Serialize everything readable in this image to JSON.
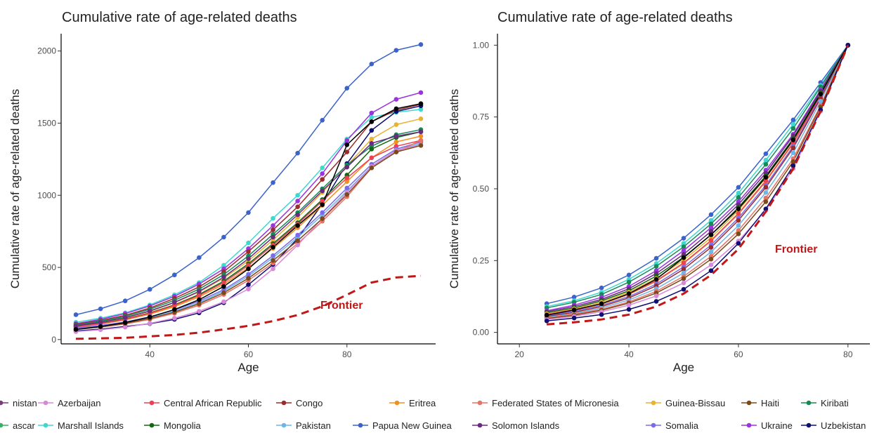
{
  "chart_data": [
    {
      "type": "line",
      "title": "Cumulative rate of age-related deaths",
      "xlabel": "Age",
      "ylabel": "Cumulative rate of age-related deaths",
      "xlim": [
        22,
        98
      ],
      "ylim": [
        -30,
        2120
      ],
      "xticks": [
        40,
        60,
        80
      ],
      "yticks": [
        0,
        500,
        1000,
        1500,
        2000
      ],
      "grid": false,
      "x": [
        25,
        30,
        35,
        40,
        45,
        50,
        55,
        60,
        65,
        70,
        75,
        80,
        85,
        90,
        95
      ],
      "series": [
        {
          "name": "Papua New Guinea",
          "color": "#3c62cc",
          "values": [
            172,
            213,
            268,
            348,
            448,
            568,
            710,
            880,
            1088,
            1292,
            1520,
            1742,
            1910,
            2005,
            2045
          ]
        },
        {
          "name": "Marshall Islands",
          "color": "#3fd8cf",
          "values": [
            120,
            148,
            185,
            240,
            310,
            395,
            515,
            670,
            840,
            1000,
            1190,
            1390,
            1540,
            1575,
            1595
          ]
        },
        {
          "name": "Ukraine",
          "color": "#9b33e0",
          "values": [
            110,
            140,
            180,
            232,
            300,
            385,
            490,
            630,
            790,
            960,
            1150,
            1380,
            1570,
            1665,
            1712
          ]
        },
        {
          "name": "Congo",
          "color": "#9e2b2b",
          "values": [
            105,
            132,
            168,
            218,
            285,
            365,
            470,
            610,
            760,
            920,
            1110,
            1300,
            1510,
            1590,
            1630
          ]
        },
        {
          "name": "Uzbekistan",
          "color": "#0e0e73",
          "values": [
            60,
            72,
            90,
            110,
            140,
            185,
            255,
            380,
            520,
            700,
            940,
            1220,
            1450,
            1580,
            1620
          ]
        },
        {
          "name": "Guinea-Bissau",
          "color": "#e6b333",
          "values": [
            95,
            120,
            150,
            195,
            255,
            330,
            425,
            545,
            690,
            845,
            1020,
            1205,
            1390,
            1490,
            1530
          ]
        },
        {
          "name": "Kiribati",
          "color": "#168a55",
          "values": [
            100,
            127,
            160,
            210,
            272,
            350,
            450,
            580,
            730,
            880,
            1045,
            1210,
            1340,
            1420,
            1455
          ]
        },
        {
          "name": "Mongolia",
          "color": "#126812",
          "values": [
            90,
            112,
            142,
            185,
            240,
            312,
            405,
            525,
            665,
            810,
            970,
            1140,
            1320,
            1400,
            1440
          ]
        },
        {
          "name": "Eritrea",
          "color": "#f09020",
          "values": [
            85,
            108,
            136,
            176,
            228,
            296,
            383,
            498,
            632,
            775,
            930,
            1095,
            1260,
            1370,
            1410
          ]
        },
        {
          "name": "Central African Republic",
          "color": "#ec4055",
          "values": [
            88,
            110,
            140,
            182,
            236,
            305,
            395,
            515,
            655,
            800,
            960,
            1120,
            1260,
            1340,
            1380
          ]
        },
        {
          "name": "Pakistan",
          "color": "#6fb5e8",
          "values": [
            75,
            92,
            115,
            150,
            196,
            256,
            336,
            440,
            568,
            708,
            862,
            1030,
            1200,
            1310,
            1360
          ]
        },
        {
          "name": "Somalia",
          "color": "#7a6be8",
          "values": [
            80,
            98,
            122,
            158,
            205,
            266,
            346,
            452,
            582,
            724,
            880,
            1050,
            1215,
            1320,
            1370
          ]
        },
        {
          "name": "Federated States of Micronesia",
          "color": "#e87265",
          "values": [
            70,
            86,
            108,
            140,
            182,
            238,
            312,
            410,
            530,
            665,
            820,
            990,
            1190,
            1300,
            1380
          ]
        },
        {
          "name": "Azerbaijan",
          "color": "#d888d8",
          "values": [
            55,
            68,
            86,
            112,
            148,
            196,
            262,
            350,
            490,
            655,
            840,
            1020,
            1200,
            1310,
            1350
          ]
        },
        {
          "name": "Haiti",
          "color": "#7a4a1a",
          "values": [
            70,
            88,
            112,
            146,
            190,
            248,
            324,
            425,
            548,
            685,
            838,
            1005,
            1190,
            1300,
            1345
          ]
        },
        {
          "name": "Solomon Islands",
          "color": "#6a2a80",
          "values": [
            95,
            120,
            152,
            198,
            258,
            334,
            432,
            560,
            710,
            865,
            1030,
            1195,
            1360,
            1410,
            1440
          ]
        },
        {
          "name": "",
          "color": "#000000",
          "values": [
            70,
            90,
            118,
            156,
            208,
            276,
            368,
            490,
            640,
            790,
            935,
            1350,
            1510,
            1600,
            1635
          ]
        }
      ],
      "frontier": {
        "label": "Frontier",
        "color": "#c01818",
        "x": [
          25,
          30,
          35,
          40,
          45,
          50,
          55,
          60,
          65,
          70,
          75,
          80,
          85,
          90,
          95
        ],
        "values": [
          5,
          8,
          12,
          22,
          32,
          48,
          70,
          95,
          128,
          170,
          230,
          310,
          395,
          430,
          442
        ]
      }
    },
    {
      "type": "line",
      "title": "Cumulative rate of age-related deaths",
      "xlabel": "Age",
      "ylabel": "Cumulative rate of age-related deaths",
      "xlim": [
        16,
        84
      ],
      "ylim": [
        -0.04,
        1.04
      ],
      "xticks": [
        20,
        40,
        60,
        80
      ],
      "yticks": [
        "0.00",
        "0.25",
        "0.50",
        "0.75",
        "1.00"
      ],
      "grid": false,
      "x": [
        25,
        30,
        35,
        40,
        45,
        50,
        55,
        60,
        65,
        70,
        75,
        80
      ],
      "series": [
        {
          "name": "Papua New Guinea",
          "color": "#3c62cc",
          "values": [
            0.1,
            0.123,
            0.155,
            0.2,
            0.258,
            0.328,
            0.41,
            0.505,
            0.622,
            0.74,
            0.87,
            1.0
          ]
        },
        {
          "name": "Marshall Islands",
          "color": "#3fd8cf",
          "values": [
            0.09,
            0.11,
            0.14,
            0.185,
            0.24,
            0.31,
            0.39,
            0.485,
            0.6,
            0.725,
            0.86,
            1.0
          ]
        },
        {
          "name": "Kiribati",
          "color": "#168a55",
          "values": [
            0.085,
            0.105,
            0.132,
            0.175,
            0.23,
            0.298,
            0.378,
            0.47,
            0.585,
            0.71,
            0.855,
            1.0
          ]
        },
        {
          "name": "Ukraine",
          "color": "#9b33e0",
          "values": [
            0.075,
            0.095,
            0.122,
            0.16,
            0.215,
            0.285,
            0.365,
            0.455,
            0.565,
            0.69,
            0.845,
            1.0
          ]
        },
        {
          "name": "Solomon Islands",
          "color": "#6a2a80",
          "values": [
            0.072,
            0.09,
            0.115,
            0.152,
            0.205,
            0.272,
            0.352,
            0.445,
            0.555,
            0.685,
            0.84,
            1.0
          ]
        },
        {
          "name": "Mongolia",
          "color": "#126812",
          "values": [
            0.068,
            0.085,
            0.11,
            0.145,
            0.196,
            0.262,
            0.34,
            0.435,
            0.545,
            0.675,
            0.835,
            1.0
          ]
        },
        {
          "name": "Guinea-Bissau",
          "color": "#e6b333",
          "values": [
            0.065,
            0.082,
            0.105,
            0.14,
            0.188,
            0.252,
            0.33,
            0.425,
            0.538,
            0.668,
            0.83,
            1.0
          ]
        },
        {
          "name": "Eritrea",
          "color": "#f09020",
          "values": [
            0.06,
            0.077,
            0.098,
            0.132,
            0.178,
            0.24,
            0.318,
            0.412,
            0.525,
            0.658,
            0.825,
            1.0
          ]
        },
        {
          "name": "Central African Republic",
          "color": "#ec4055",
          "values": [
            0.062,
            0.079,
            0.1,
            0.134,
            0.18,
            0.242,
            0.32,
            0.414,
            0.528,
            0.66,
            0.826,
            1.0
          ]
        },
        {
          "name": "Somalia",
          "color": "#7a6be8",
          "values": [
            0.058,
            0.074,
            0.094,
            0.125,
            0.168,
            0.228,
            0.304,
            0.398,
            0.512,
            0.648,
            0.82,
            1.0
          ]
        },
        {
          "name": "Congo",
          "color": "#9e2b2b",
          "values": [
            0.055,
            0.07,
            0.09,
            0.12,
            0.162,
            0.22,
            0.296,
            0.39,
            0.505,
            0.642,
            0.815,
            1.0
          ]
        },
        {
          "name": "Pakistan",
          "color": "#6fb5e8",
          "values": [
            0.052,
            0.066,
            0.085,
            0.113,
            0.152,
            0.207,
            0.28,
            0.372,
            0.487,
            0.625,
            0.805,
            1.0
          ]
        },
        {
          "name": "Federated States of Micronesia",
          "color": "#e87265",
          "values": [
            0.05,
            0.063,
            0.08,
            0.106,
            0.143,
            0.195,
            0.265,
            0.355,
            0.468,
            0.605,
            0.79,
            1.0
          ]
        },
        {
          "name": "Haiti",
          "color": "#7a4a1a",
          "values": [
            0.048,
            0.06,
            0.077,
            0.102,
            0.137,
            0.187,
            0.255,
            0.343,
            0.455,
            0.595,
            0.785,
            1.0
          ]
        },
        {
          "name": "Azerbaijan",
          "color": "#d888d8",
          "values": [
            0.045,
            0.056,
            0.072,
            0.095,
            0.127,
            0.172,
            0.235,
            0.318,
            0.425,
            0.57,
            0.77,
            1.0
          ]
        },
        {
          "name": "",
          "color": "#000000",
          "values": [
            0.06,
            0.078,
            0.1,
            0.135,
            0.185,
            0.26,
            0.34,
            0.43,
            0.54,
            0.67,
            0.83,
            1.0
          ]
        },
        {
          "name": "Uzbekistan",
          "color": "#0e0e73",
          "values": [
            0.04,
            0.05,
            0.062,
            0.08,
            0.108,
            0.15,
            0.215,
            0.31,
            0.43,
            0.58,
            0.775,
            1.0
          ]
        }
      ],
      "frontier": {
        "label": "Frontier",
        "color": "#c01818",
        "x": [
          25,
          30,
          35,
          40,
          45,
          50,
          55,
          60,
          65,
          70,
          75,
          80
        ],
        "values": [
          0.028,
          0.035,
          0.045,
          0.062,
          0.09,
          0.135,
          0.2,
          0.29,
          0.42,
          0.57,
          0.77,
          1.0
        ]
      }
    }
  ],
  "legend": {
    "placement": "bottom",
    "rows": [
      [
        {
          "label": "nistan",
          "color": "#7a3b7a"
        },
        {
          "label": "Azerbaijan",
          "color": "#d888d8"
        },
        {
          "label": "Central African Republic",
          "color": "#ec4055"
        },
        {
          "label": "Congo",
          "color": "#9e2b2b"
        },
        {
          "label": "Eritrea",
          "color": "#f09020"
        },
        {
          "label": "Federated States of Micronesia",
          "color": "#e87265"
        },
        {
          "label": "Guinea-Bissau",
          "color": "#e6b333"
        },
        {
          "label": "Haiti",
          "color": "#7a4a1a"
        },
        {
          "label": "Kiribati",
          "color": "#168a55"
        }
      ],
      [
        {
          "label": "ascar",
          "color": "#35b06a"
        },
        {
          "label": "Marshall Islands",
          "color": "#3fd8cf"
        },
        {
          "label": "Mongolia",
          "color": "#126812"
        },
        {
          "label": "Pakistan",
          "color": "#6fb5e8"
        },
        {
          "label": "Papua New Guinea",
          "color": "#3c62cc"
        },
        {
          "label": "Solomon Islands",
          "color": "#6a2a80"
        },
        {
          "label": "Somalia",
          "color": "#7a6be8"
        },
        {
          "label": "Ukraine",
          "color": "#9b33e0"
        },
        {
          "label": "Uzbekistan",
          "color": "#0e0e73"
        }
      ]
    ]
  }
}
